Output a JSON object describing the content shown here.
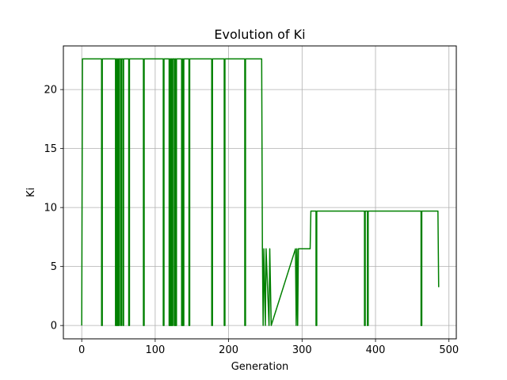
{
  "chart_data": {
    "type": "line",
    "title": "Evolution of Ki",
    "xlabel": "Generation",
    "ylabel": "Ki",
    "xlim": [
      -25,
      510
    ],
    "ylim": [
      -1.13,
      23.7
    ],
    "xticks": [
      0,
      100,
      200,
      300,
      400,
      500
    ],
    "yticks": [
      0,
      5,
      10,
      15,
      20
    ],
    "grid": true,
    "legend": "none",
    "series": [
      {
        "color": "#008000",
        "x": [
          0,
          1,
          27,
          27,
          28,
          28,
          46,
          46,
          47,
          47,
          48,
          48,
          49,
          49,
          50,
          50,
          51,
          51,
          53,
          53,
          54,
          54,
          56,
          56,
          57,
          57,
          64,
          64,
          65,
          65,
          84,
          84,
          85,
          85,
          111,
          111,
          112,
          112,
          119,
          119,
          120,
          120,
          121,
          121,
          122,
          122,
          123,
          123,
          124,
          124,
          126,
          126,
          127,
          127,
          128,
          128,
          129,
          129,
          136,
          136,
          137,
          137,
          138,
          138,
          139,
          139,
          146,
          146,
          147,
          147,
          177,
          177,
          178,
          178,
          194,
          194,
          195,
          195,
          222,
          222,
          223,
          223,
          245,
          246,
          246,
          247,
          247,
          248,
          248,
          250,
          250,
          251,
          251,
          255,
          255,
          256,
          256,
          258,
          258,
          291,
          291,
          292,
          292,
          293,
          293,
          294,
          294,
          295,
          295,
          311,
          312,
          319,
          319,
          320,
          320,
          385,
          385,
          386,
          386,
          389,
          389,
          390,
          390,
          462,
          462,
          463,
          463,
          485,
          486
        ],
        "y": [
          0,
          22.6,
          22.6,
          0,
          0,
          22.6,
          22.6,
          0,
          0,
          22.6,
          22.6,
          0,
          0,
          22.6,
          22.6,
          0,
          0,
          22.6,
          22.6,
          0,
          0,
          22.6,
          22.6,
          0,
          0,
          22.6,
          22.6,
          0,
          0,
          22.6,
          22.6,
          0,
          0,
          22.6,
          22.6,
          0,
          0,
          22.6,
          22.6,
          0,
          0,
          22.6,
          22.6,
          0,
          0,
          22.6,
          22.6,
          0,
          0,
          22.6,
          22.6,
          0,
          0,
          22.6,
          22.6,
          0,
          0,
          22.6,
          22.6,
          0,
          0,
          22.6,
          22.6,
          0,
          0,
          22.6,
          22.6,
          0,
          0,
          22.6,
          22.6,
          0,
          0,
          22.6,
          22.6,
          0,
          0,
          22.6,
          22.6,
          0,
          0,
          22.6,
          22.6,
          6.5,
          6.5,
          0,
          0,
          6.5,
          6.5,
          0,
          0,
          6.5,
          6.5,
          0,
          0,
          6.5,
          6.5,
          0,
          0,
          6.5,
          6.5,
          0,
          0,
          6.5,
          6.5,
          0,
          0,
          6.5,
          6.5,
          6.5,
          9.7,
          9.7,
          0,
          0,
          9.7,
          9.7,
          0,
          0,
          9.7,
          9.7,
          0,
          0,
          9.7,
          9.7,
          0,
          0,
          9.7,
          9.7,
          3.25
        ]
      }
    ]
  }
}
